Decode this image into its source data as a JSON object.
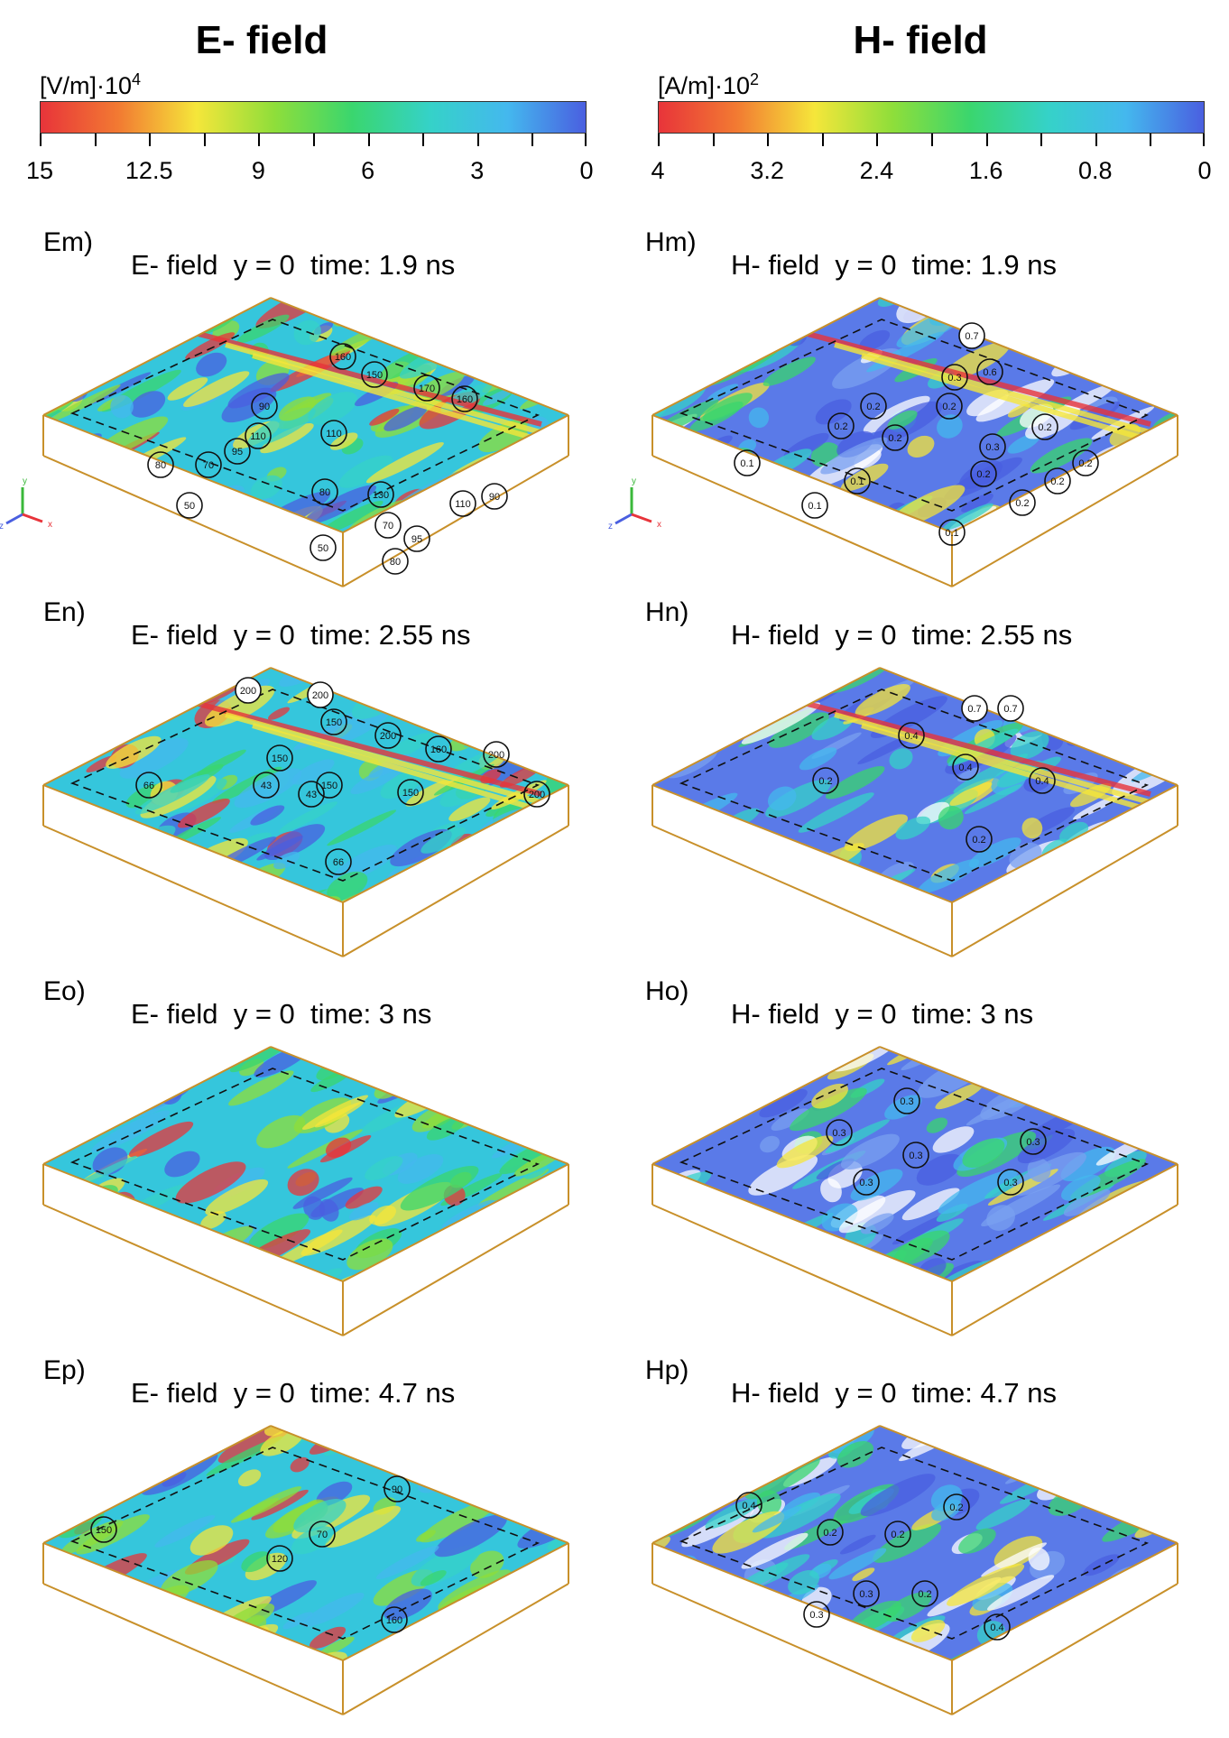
{
  "colors": {
    "e_scale": [
      "#e8343a",
      "#f27a32",
      "#f5e63a",
      "#8fde3a",
      "#3ad66e",
      "#35d2c8",
      "#44b8ee",
      "#4a5fe0"
    ],
    "h_scale": [
      "#e8343a",
      "#f27a32",
      "#f5e63a",
      "#8fde3a",
      "#3ad66e",
      "#35d2c8",
      "#44b8ee",
      "#4a5fe0"
    ],
    "frame": "#c8902a"
  },
  "e_column": {
    "title": "E- field",
    "unit_main": "[V/m]·10",
    "unit_exp": "4",
    "ticks": [
      "15",
      "12.5",
      "9",
      "6",
      "3",
      "0"
    ],
    "panels": [
      {
        "label": "Em)",
        "title": "E- field  y = 0  time: 1.9 ns",
        "markers": [
          "160",
          "150",
          "170",
          "160",
          "90",
          "110",
          "110",
          "95",
          "80",
          "70",
          "50",
          "80",
          "130",
          "110",
          "90",
          "70",
          "95",
          "50",
          "80"
        ]
      },
      {
        "label": "En)",
        "title": "E- field  y = 0  time: 2.55 ns",
        "markers": [
          "200",
          "200",
          "150",
          "150",
          "200",
          "160",
          "200",
          "150",
          "66",
          "43",
          "43",
          "150",
          "200",
          "66"
        ]
      },
      {
        "label": "Eo)",
        "title": "E- field  y = 0  time: 3 ns",
        "markers": []
      },
      {
        "label": "Ep)",
        "title": "E- field  y = 0  time: 4.7 ns",
        "markers": [
          "90",
          "70",
          "150",
          "120",
          "160"
        ]
      }
    ]
  },
  "h_column": {
    "title": "H- field",
    "unit_main": "[A/m]·10",
    "unit_exp": "2",
    "ticks": [
      "4",
      "3.2",
      "2.4",
      "1.6",
      "0.8",
      "0"
    ],
    "panels": [
      {
        "label": "Hm)",
        "title": "H- field  y = 0  time: 1.9 ns",
        "markers": [
          "0.7",
          "0.3",
          "0.6",
          "0.2",
          "0.2",
          "0.2",
          "0.2",
          "0.2",
          "0.3",
          "0.1",
          "0.1",
          "0.2",
          "0.2",
          "0.2",
          "0.2",
          "0.1",
          "0.1"
        ]
      },
      {
        "label": "Hn)",
        "title": "H- field  y = 0  time: 2.55 ns",
        "markers": [
          "0.7",
          "0.7",
          "0.4",
          "0.4",
          "0.2",
          "0.4",
          "0.2"
        ]
      },
      {
        "label": "Ho)",
        "title": "H- field  y = 0  time: 3 ns",
        "markers": [
          "0.3",
          "0.3",
          "0.3",
          "0.3",
          "0.3",
          "0.3"
        ]
      },
      {
        "label": "Hp)",
        "title": "H- field  y = 0  time: 4.7 ns",
        "markers": [
          "0.4",
          "0.2",
          "0.2",
          "0.2",
          "0.3",
          "0.2",
          "0.3",
          "0.4"
        ]
      }
    ]
  },
  "axes": {
    "y": "y",
    "z": "z",
    "x": "x"
  }
}
